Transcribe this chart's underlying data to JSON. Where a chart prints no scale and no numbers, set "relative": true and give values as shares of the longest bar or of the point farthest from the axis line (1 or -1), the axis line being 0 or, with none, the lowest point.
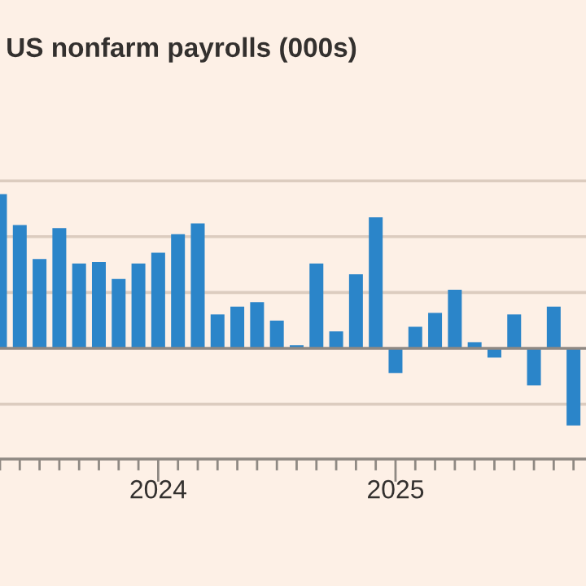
{
  "chart_data": {
    "type": "bar",
    "title": "US nonfarm payrolls (000s)",
    "relative": true,
    "grid": "y",
    "color": "#2b85c9",
    "categories": [
      null,
      null,
      null,
      null,
      null,
      null,
      null,
      null,
      "2024",
      null,
      null,
      null,
      null,
      null,
      null,
      null,
      null,
      null,
      null,
      null,
      "2025",
      null,
      null,
      null,
      null,
      null,
      null,
      null,
      null,
      null
    ],
    "values": [
      1.0,
      0.8,
      0.58,
      0.78,
      0.55,
      0.56,
      0.45,
      0.55,
      0.62,
      0.74,
      0.81,
      0.22,
      0.27,
      0.3,
      0.18,
      0.02,
      0.55,
      0.11,
      0.48,
      0.85,
      -0.16,
      0.14,
      0.23,
      0.38,
      0.04,
      -0.06,
      0.22,
      -0.24,
      0.27,
      -0.5
    ]
  }
}
